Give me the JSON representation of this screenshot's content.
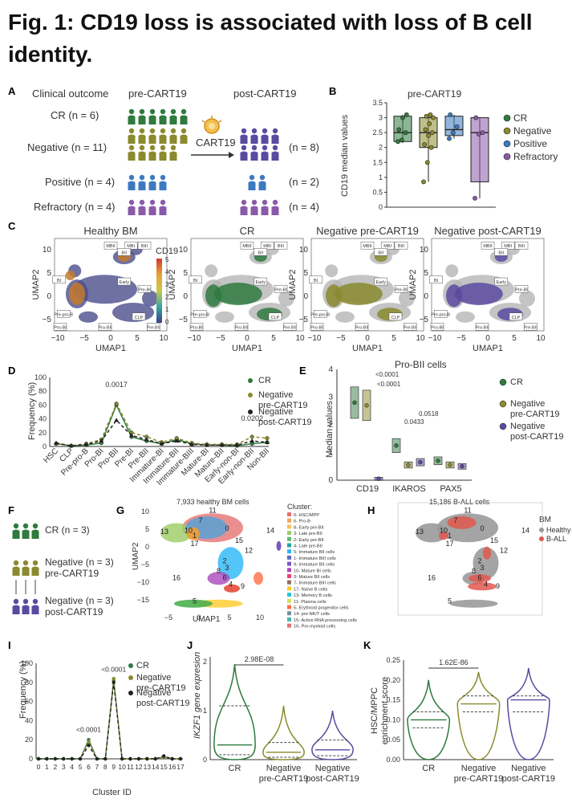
{
  "title": "Fig. 1: CD19 loss is associated with loss of B cell identity.",
  "panels": {
    "A": {
      "letter": "A",
      "col_clinical": "Clinical outcome",
      "col_pre": "pre-CART19",
      "col_post": "post-CART19",
      "rows": [
        "CR (n = 6)",
        "Negative (n = 11)",
        "Positive (n = 4)",
        "Refractory (n = 4)"
      ],
      "post_counts": [
        "(n = 8)",
        "(n = 2)",
        "(n = 4)"
      ],
      "arrow_label": "CART19"
    },
    "B": {
      "letter": "B",
      "legend": [
        "CR",
        "Negative",
        "Positive",
        "Refractory"
      ]
    },
    "C": {
      "letter": "C",
      "titles": [
        "Healthy BM",
        "CR",
        "Negative pre-CART19",
        "Negative post-CART19"
      ],
      "colorbar_title": "CD19",
      "colorbar_ticks": [
        "5",
        "4",
        "3",
        "2",
        "1",
        "0"
      ],
      "xlabel": "UMAP1",
      "ylabel": "UMAP2",
      "xticks": [
        "−10",
        "−5",
        "0",
        "5",
        "10"
      ],
      "yticks": [
        "10",
        "5",
        "0",
        "−5"
      ],
      "boxes": [
        "MBII",
        "MBI",
        "BIII",
        "BII",
        "BI",
        "Early",
        "Pre-BI",
        "Pre-pro-B",
        "CLP",
        "Pre-BII",
        "Pro-BI",
        "Pro-BII",
        "MNB",
        "ENBI",
        "ENBII",
        "HSC",
        "RBI"
      ]
    },
    "D": {
      "letter": "D",
      "legend": [
        "CR",
        "Negative\npre-CART19",
        "Negative\npost-CART19"
      ]
    },
    "E": {
      "letter": "E",
      "legend": [
        "CR",
        "Negative\npre-CART19",
        "Negative\npost-CART19"
      ]
    },
    "F": {
      "letter": "F",
      "rows": [
        "CR (n = 3)",
        "Negative (n = 3)",
        "pre-CART19",
        "Negative (n = 3)",
        "post-CART19"
      ]
    },
    "G": {
      "letter": "G",
      "subtitle": "7,933 healthy BM cells",
      "xlabel": "UMAP1",
      "ylabel": "UMAP2",
      "xticks": [
        "−5",
        "0",
        "5",
        "10"
      ],
      "yticks": [
        "10",
        "5",
        "0",
        "−5",
        "−10",
        "−15"
      ],
      "legend_title": "Cluster:",
      "legend": [
        "0- HSC/MPP",
        "6- Pro-B",
        "8- Early pre-BII",
        "3- Late pre-BII",
        "2- Early pre-BII",
        "4- Late pre-BII",
        "5- Immature BII cells",
        "1- Immature BIII cells",
        "9- Immature BII cells",
        "10- Mature BI cells",
        "3- Mature BII cells",
        "7- Immature BIII cells",
        "17- Naïve B cells",
        "13- Memory B cells",
        "11- Plasma cells",
        "5- Erythroid progenitor cells",
        "14- pre-NK/T cells",
        "15- Active RNA processing cells",
        "16- Pre-myeloid cells"
      ],
      "cluster_labels": [
        "11",
        "7",
        "10",
        "0",
        "13",
        "17",
        "15",
        "12",
        "2",
        "3",
        "8",
        "6",
        "4",
        "9",
        "16",
        "5",
        "1",
        "14"
      ]
    },
    "H": {
      "letter": "H",
      "subtitle": "15,186 B-ALL cells",
      "legend_title": "BM",
      "legend": [
        "Healthy",
        "B-ALL"
      ],
      "cluster_labels": [
        "11",
        "7",
        "10",
        "0",
        "13",
        "17",
        "15",
        "12",
        "2",
        "3",
        "8",
        "6",
        "4",
        "9",
        "16",
        "5",
        "1",
        "14"
      ]
    },
    "I": {
      "letter": "I",
      "legend": [
        "CR",
        "Negative\npre-CART19",
        "Negative\npost-CART19"
      ],
      "annotations": [
        "<0.0001",
        "<0.0001"
      ]
    },
    "J": {
      "letter": "J",
      "pvalue": "2.98E-08",
      "ylabel": "IKZF1 gene expresion"
    },
    "K": {
      "letter": "K",
      "pvalue": "1.62E-86",
      "ylabel": "HSC/MPPC\nenrichment score"
    }
  },
  "colors": {
    "CR": "#2f7a3f",
    "Negative": "#8a8a2e",
    "Positive": "#3d79bf",
    "Refractory": "#8a5aa8",
    "Post": "#5a4aa0",
    "Healthy": "#9a9a9a",
    "BALL": "#e0584f"
  },
  "chart_data": [
    {
      "panel": "B",
      "type": "box",
      "title": "pre-CART19",
      "ylabel": "CD19 median values",
      "yticks": [
        "0",
        "0.5",
        "1",
        "1.5",
        "2",
        "2.5",
        "3",
        "3.5"
      ],
      "ylim": [
        0,
        3.5
      ],
      "categories": [
        "CR",
        "Negative",
        "Positive",
        "Refractory"
      ],
      "series": [
        {
          "name": "CR",
          "q1": 2.2,
          "median": 2.5,
          "q3": 3.05,
          "min": 2.15,
          "max": 3.1,
          "points": [
            2.2,
            2.25,
            2.5,
            2.6,
            3.0,
            3.1
          ]
        },
        {
          "name": "Negative",
          "q1": 2.0,
          "median": 2.5,
          "q3": 3.0,
          "min": 0.85,
          "max": 3.1,
          "points": [
            0.85,
            1.5,
            2.0,
            2.1,
            2.4,
            2.5,
            2.6,
            2.8,
            3.0,
            3.05,
            3.1
          ]
        },
        {
          "name": "Positive",
          "q1": 2.4,
          "median": 2.6,
          "q3": 3.05,
          "min": 2.3,
          "max": 3.1,
          "points": [
            2.3,
            2.5,
            2.7,
            3.1
          ]
        },
        {
          "name": "Refractory",
          "q1": 0.85,
          "median": 2.5,
          "q3": 3.0,
          "min": 0.3,
          "max": 3.0,
          "points": [
            0.3,
            2.45,
            2.5,
            3.0
          ]
        }
      ]
    },
    {
      "panel": "D",
      "type": "line",
      "ylabel": "Frequency (%)",
      "yticks": [
        "0",
        "20",
        "40",
        "60",
        "80",
        "100"
      ],
      "ylim": [
        0,
        100
      ],
      "categories": [
        "HSC",
        "CLP",
        "Pre-pro-B",
        "Pro-BI",
        "Pro-BII",
        "Pre-BI",
        "Pre-BII",
        "Immature-BI",
        "Immature-BII",
        "Immature-BIII",
        "Mature-BI",
        "Mature-BII",
        "Early-non-BI",
        "Early-non-BII",
        "Non-BII"
      ],
      "series": [
        {
          "name": "CR",
          "values": [
            4,
            1,
            2,
            5,
            60,
            14,
            8,
            4,
            10,
            4,
            2,
            2,
            1,
            4,
            6
          ]
        },
        {
          "name": "Negative pre-CART19",
          "values": [
            4,
            1,
            4,
            10,
            62,
            20,
            14,
            6,
            12,
            5,
            3,
            3,
            3,
            14,
            12
          ]
        },
        {
          "name": "Negative post-CART19",
          "values": [
            5,
            1,
            3,
            8,
            38,
            16,
            10,
            4,
            8,
            3,
            2,
            2,
            2,
            8,
            6
          ]
        }
      ],
      "annotations": [
        "0.0017",
        "0.0202"
      ]
    },
    {
      "panel": "E",
      "type": "box",
      "title": "Pro-BII cells",
      "ylabel": "Median values",
      "yticks": [
        "0",
        "1",
        "2",
        "3",
        "4"
      ],
      "ylim": [
        0,
        4
      ],
      "categories": [
        "CD19",
        "IKAROS",
        "PAX5"
      ],
      "series": [
        {
          "name": "CR",
          "values": [
            2.8,
            1.25,
            0.7
          ]
        },
        {
          "name": "Negative pre-CART19",
          "values": [
            2.7,
            0.55,
            0.55
          ]
        },
        {
          "name": "Negative post-CART19",
          "values": [
            0.05,
            0.65,
            0.5
          ]
        }
      ],
      "annotations": [
        "<0.0001",
        "<0.0001",
        "0.0433",
        "0.0518"
      ]
    },
    {
      "panel": "I",
      "type": "line",
      "ylabel": "Frequency (%)",
      "xlabel": "Cluster ID",
      "yticks": [
        "0",
        "20",
        "40",
        "60",
        "80",
        "100"
      ],
      "ylim": [
        0,
        100
      ],
      "categories": [
        "0",
        "1",
        "2",
        "3",
        "4",
        "5",
        "6",
        "7",
        "8",
        "9",
        "10",
        "11",
        "12",
        "13",
        "14",
        "15",
        "16",
        "17"
      ],
      "series": [
        {
          "name": "CR",
          "values": [
            0,
            0,
            0,
            0,
            0,
            0,
            20,
            0,
            0,
            82,
            0,
            0,
            0,
            0,
            0,
            2,
            0,
            0
          ]
        },
        {
          "name": "Negative pre-CART19",
          "values": [
            0,
            0,
            0,
            0,
            0,
            0,
            18,
            0,
            0,
            84,
            0,
            0,
            0,
            0,
            0,
            2,
            0,
            0
          ]
        },
        {
          "name": "Negative post-CART19",
          "values": [
            0,
            0,
            0,
            0,
            0,
            0,
            14,
            0,
            0,
            80,
            0,
            0,
            0,
            0,
            0,
            3,
            0,
            0
          ]
        }
      ]
    },
    {
      "panel": "J",
      "type": "violin",
      "yticks": [
        "0",
        "1",
        "2"
      ],
      "ylim": [
        0,
        2.1
      ],
      "categories": [
        "CR",
        "Negative\npre-CART19",
        "Negative\npost-CART19"
      ],
      "series": [
        {
          "name": "CR",
          "median": 0.3,
          "q1": 0.1,
          "q3": 1.1,
          "max": 1.95
        },
        {
          "name": "Negative pre-CART19",
          "median": 0.15,
          "q1": 0.05,
          "q3": 0.35,
          "max": 1.1
        },
        {
          "name": "Negative post-CART19",
          "median": 0.2,
          "q1": 0.08,
          "q3": 0.4,
          "max": 1.0
        }
      ]
    },
    {
      "panel": "K",
      "type": "violin",
      "yticks": [
        "0.00",
        "0.05",
        "0.10",
        "0.15",
        "0.20",
        "0.25"
      ],
      "ylim": [
        0,
        0.25
      ],
      "categories": [
        "CR",
        "Negative\npre-CART19",
        "Negative\npost-CART19"
      ],
      "series": [
        {
          "name": "CR",
          "median": 0.1,
          "q1": 0.08,
          "q3": 0.12,
          "max": 0.2
        },
        {
          "name": "Negative pre-CART19",
          "median": 0.14,
          "q1": 0.12,
          "q3": 0.16,
          "max": 0.22
        },
        {
          "name": "Negative post-CART19",
          "median": 0.15,
          "q1": 0.12,
          "q3": 0.16,
          "max": 0.23
        }
      ]
    }
  ]
}
